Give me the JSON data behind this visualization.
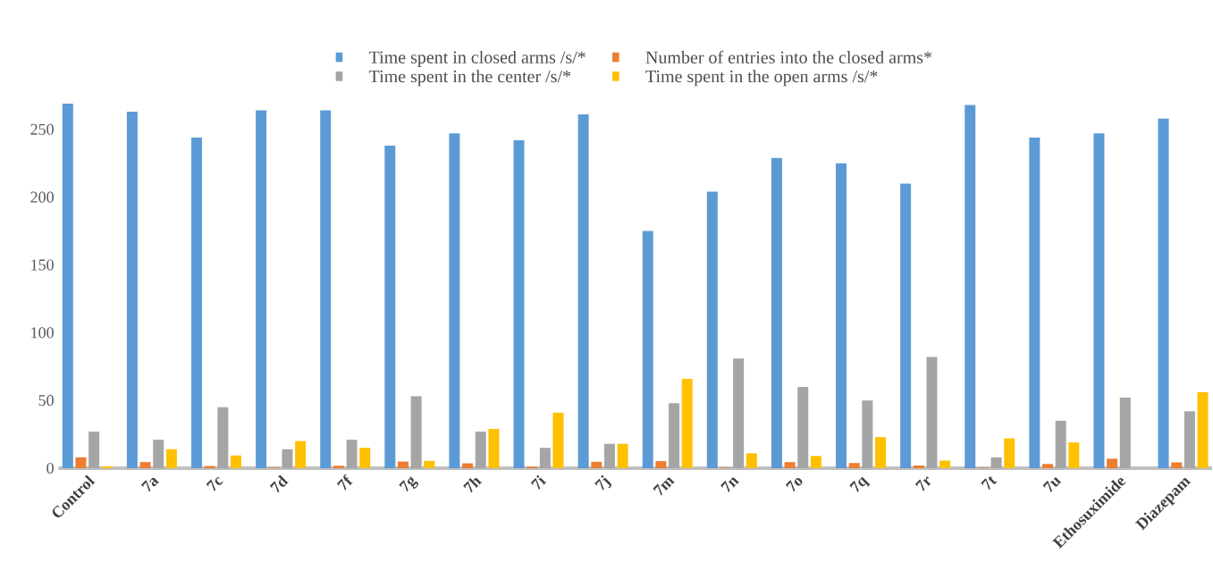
{
  "chart_data": {
    "type": "bar",
    "categories": [
      "Control",
      "7a",
      "7c",
      "7d",
      "7f",
      "7g",
      "7h",
      "7i",
      "7j",
      "7m",
      "7n",
      "7o",
      "7q",
      "7r",
      "7t",
      "7u",
      "Ethosuximide",
      "Diazepam"
    ],
    "series": [
      {
        "name": "Time spent in closed arms /s/*",
        "color": "#5b9bd5",
        "values": [
          269,
          263,
          244,
          264,
          264,
          238,
          247,
          242,
          261,
          175,
          204,
          229,
          225,
          210,
          268,
          244,
          247,
          258
        ]
      },
      {
        "name": "Number of entries into the closed arms*",
        "color": "#ed7d31",
        "values": [
          8,
          4.5,
          1.6,
          0.4,
          1.8,
          4.9,
          3.6,
          1.1,
          4.7,
          5.2,
          0.4,
          4.5,
          3.8,
          2,
          0.4,
          3.1,
          7,
          4.3
        ]
      },
      {
        "name": "Time spent in the center /s/*",
        "color": "#a5a5a5",
        "values": [
          27,
          21,
          45,
          14,
          21,
          53,
          27,
          15,
          18,
          48,
          81,
          60,
          50,
          82,
          8,
          35,
          52,
          42
        ]
      },
      {
        "name": "Time spent in the open arms /s/*",
        "color": "#ffc000",
        "values": [
          1.3,
          14,
          9.4,
          20,
          15,
          5.4,
          29,
          41,
          18,
          66,
          11,
          9,
          23,
          5.6,
          22,
          19,
          null,
          56
        ]
      }
    ],
    "ylim": [
      0,
      269
    ],
    "yticks": [
      0,
      50,
      100,
      150,
      200,
      250
    ],
    "legend": "top"
  }
}
